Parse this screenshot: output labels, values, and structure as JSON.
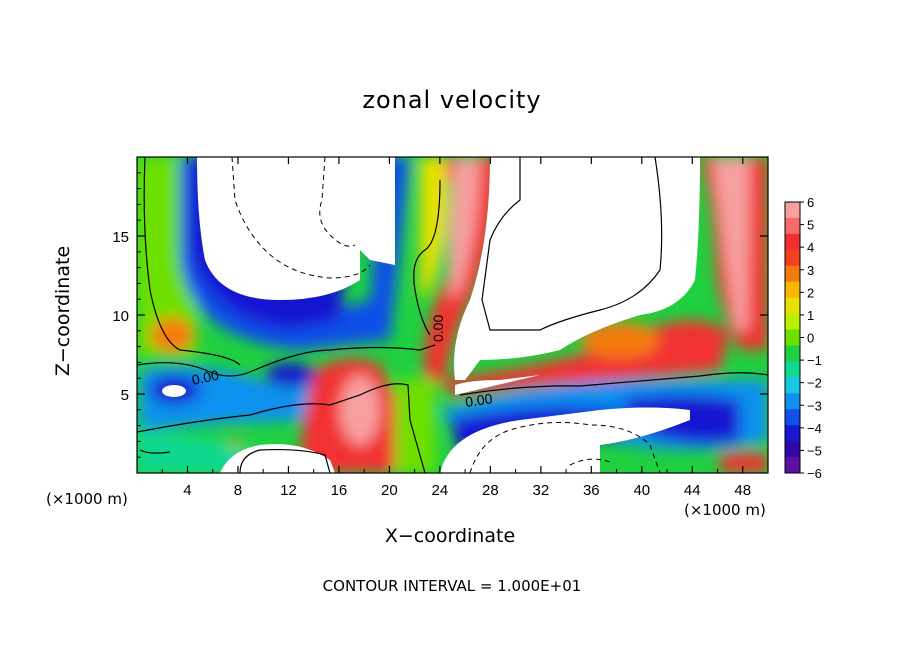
{
  "chart_data": {
    "type": "heatmap",
    "title": "zonal velocity",
    "xlabel": "X−coordinate",
    "ylabel": "Z−coordinate",
    "x_unit_label": "(×1000 m)",
    "x_ticks": [
      "4",
      "8",
      "12",
      "16",
      "20",
      "24",
      "28",
      "32",
      "36",
      "40",
      "44",
      "48"
    ],
    "y_ticks": [
      "5",
      "10",
      "15"
    ],
    "xlim": [
      0,
      50
    ],
    "ylim": [
      0,
      20
    ],
    "colorbar": {
      "min": -6,
      "max": 6,
      "ticks": [
        "6",
        "5",
        "4",
        "3",
        "2",
        "1",
        "0",
        "−1",
        "−2",
        "−3",
        "−4",
        "−5",
        "−6"
      ],
      "colors": [
        "#f7a0a0",
        "#f56a6a",
        "#f23030",
        "#f24020",
        "#f57a10",
        "#f8b800",
        "#e8e000",
        "#b8f000",
        "#6ee000",
        "#20d040",
        "#10d890",
        "#18c8e0",
        "#1090f0",
        "#1050e8",
        "#1818d0",
        "#3008a8",
        "#6010a0"
      ]
    },
    "contour_labels": [
      "0.00",
      "0.00",
      "0.00"
    ],
    "footnote": "CONTOUR INTERVAL = 1.000E+01"
  }
}
